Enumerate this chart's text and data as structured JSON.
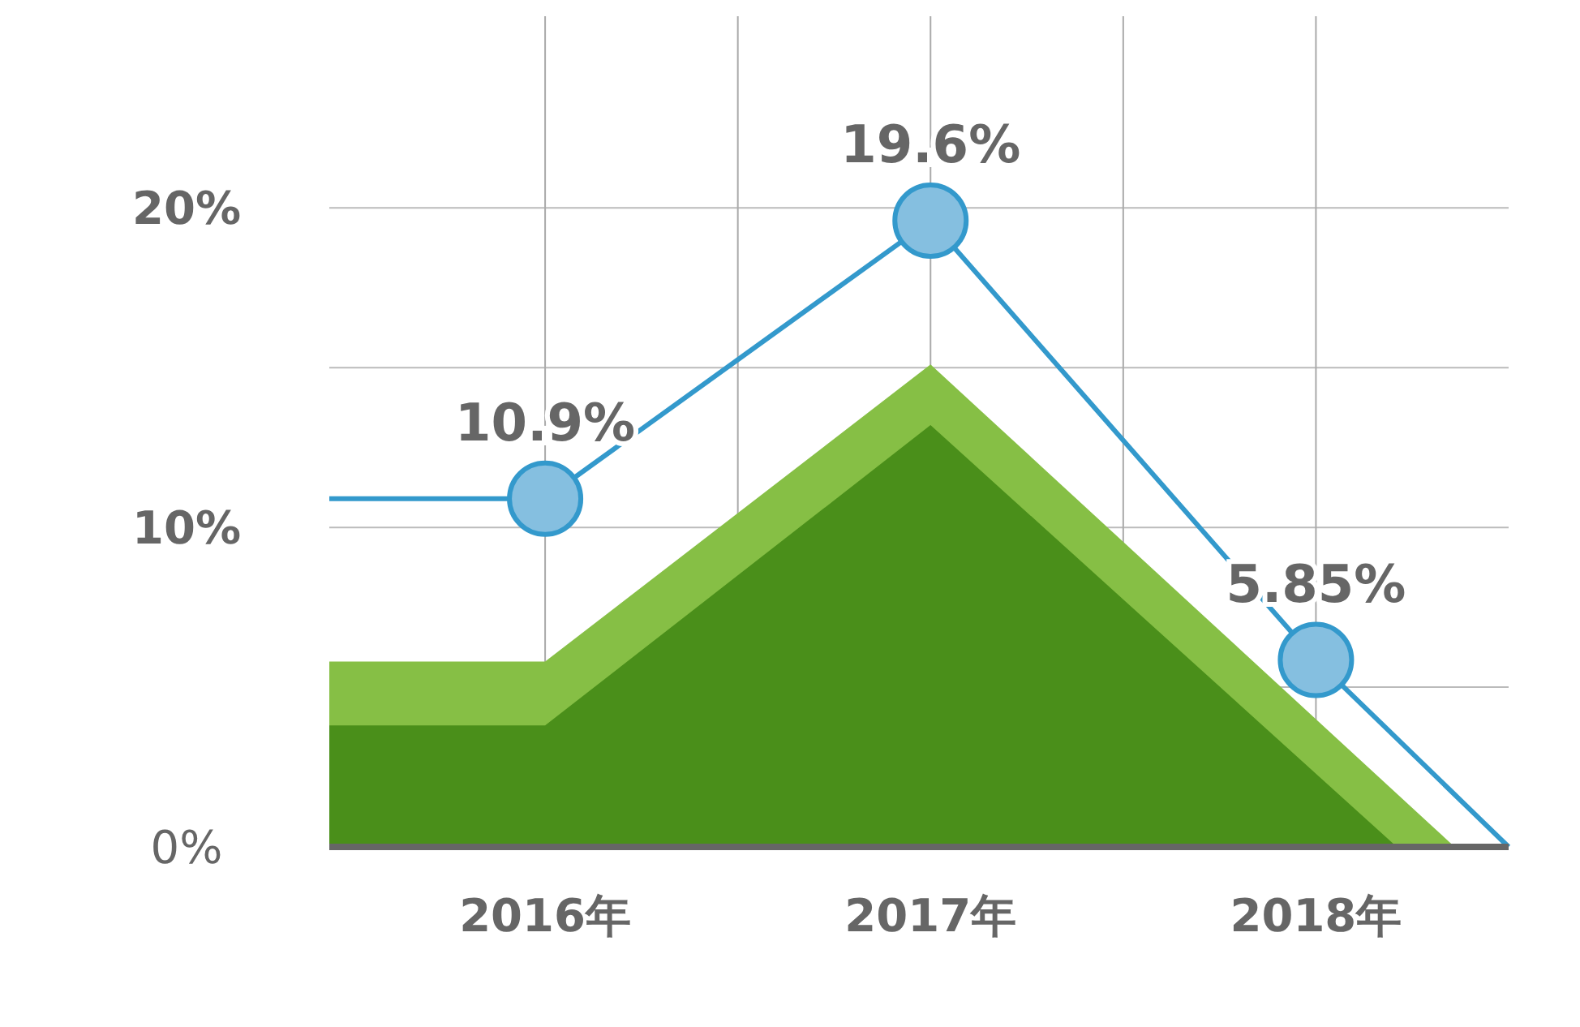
{
  "chart_data": {
    "type": "line",
    "xlim": [
      2015.44,
      2018.5
    ],
    "ylim": [
      0,
      26
    ],
    "xticks": [
      {
        "value": 2016,
        "label": "2016年"
      },
      {
        "value": 2016.5,
        "label": null
      },
      {
        "value": 2017,
        "label": "2017年"
      },
      {
        "value": 2017.5,
        "label": null
      },
      {
        "value": 2018,
        "label": "2018年"
      }
    ],
    "yticks": [
      {
        "value": 0,
        "label": "0%"
      },
      {
        "value": 5,
        "label": null
      },
      {
        "value": 10,
        "label": "10%"
      },
      {
        "value": 15,
        "label": null
      },
      {
        "value": 20,
        "label": "20%"
      }
    ],
    "grid": true,
    "series": [
      {
        "type": "area",
        "color": "#86bf45",
        "x": [
          2015.44,
          2016,
          2017,
          2018.36
        ],
        "values": [
          5.8,
          5.8,
          15.1,
          0
        ]
      },
      {
        "type": "area",
        "color": "#4a8f1a",
        "x": [
          2015.44,
          2016,
          2017,
          2018.21
        ],
        "values": [
          3.8,
          3.8,
          13.2,
          0
        ]
      },
      {
        "marker": "circle",
        "color": "#3399cc",
        "x": [
          2015.44,
          2016,
          2017,
          2018,
          2018.5
        ],
        "values": [
          10.9,
          10.9,
          19.6,
          5.85,
          0
        ],
        "value_labels": [
          null,
          "10.9%",
          "19.6%",
          "5.85%",
          null
        ]
      }
    ]
  }
}
